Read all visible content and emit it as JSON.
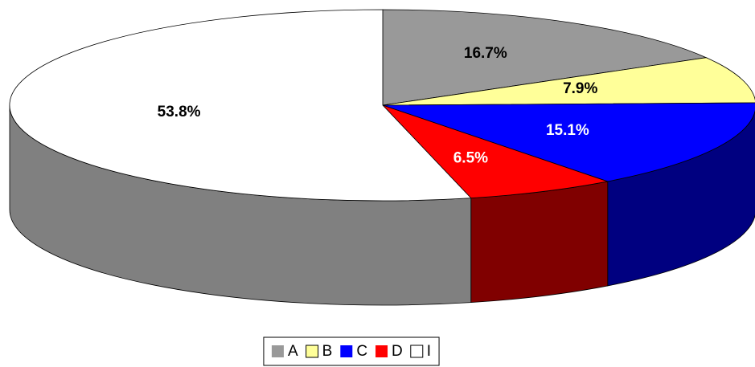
{
  "chart_data": {
    "type": "pie3d",
    "categories": [
      "A",
      "B",
      "C",
      "D",
      "I"
    ],
    "values": [
      16.7,
      7.9,
      15.1,
      6.5,
      53.8
    ],
    "value_labels": [
      "16.7%",
      "7.9%",
      "15.1%",
      "6.5%",
      "53.8%"
    ],
    "colors": [
      "#999999",
      "#ffff99",
      "#0000ff",
      "#ff0000",
      "#ffffff"
    ],
    "legend": "bottom"
  }
}
